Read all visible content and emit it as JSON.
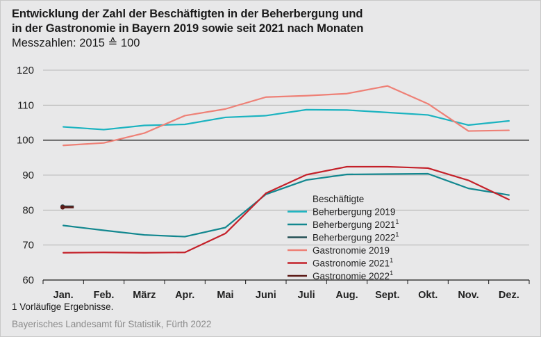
{
  "title_line1": "Entwicklung der Zahl der Beschäftigten in der Beherbergung und",
  "title_line2": "in der Gastronomie in Bayern 2019 sowie seit 2021 nach Monaten",
  "subtitle": "Messzahlen: 2015 ≙ 100",
  "footnote": "1  Vorläufige Ergebnisse.",
  "source": "Bayerisches Landesamt für Statistik, Fürth 2022",
  "chart_data": {
    "type": "line",
    "categories": [
      "Jan.",
      "Feb.",
      "März",
      "Apr.",
      "Mai",
      "Juni",
      "Juli",
      "Aug.",
      "Sept.",
      "Okt.",
      "Nov.",
      "Dez."
    ],
    "ylim": [
      60,
      120
    ],
    "yticks": [
      60,
      70,
      80,
      90,
      100,
      110,
      120
    ],
    "reference_line": 100,
    "grid": "horizontal",
    "legend_title": "Beschäftigte",
    "legend_position": "center-right",
    "series": [
      {
        "name": "Beherbergung 2019",
        "sup": "",
        "color": "#1bb3c0",
        "values": [
          103.8,
          103.0,
          104.2,
          104.5,
          106.5,
          107.0,
          108.7,
          108.6,
          107.9,
          107.2,
          104.3,
          105.5
        ]
      },
      {
        "name": "Beherbergung 2021",
        "sup": "1",
        "color": "#12878f",
        "values": [
          75.6,
          74.2,
          72.9,
          72.4,
          75.0,
          84.5,
          88.6,
          90.2,
          90.3,
          90.4,
          86.2,
          84.3
        ]
      },
      {
        "name": "Beherbergung 2022",
        "sup": "1",
        "color": "#214d52",
        "values": [
          81.0,
          null,
          null,
          null,
          null,
          null,
          null,
          null,
          null,
          null,
          null,
          null
        ]
      },
      {
        "name": "Gastronomie 2019",
        "sup": "",
        "color": "#ee8076",
        "values": [
          98.5,
          99.2,
          102.0,
          107.0,
          108.9,
          112.3,
          112.7,
          113.3,
          115.5,
          110.4,
          102.6,
          102.8
        ]
      },
      {
        "name": "Gastronomie 2021",
        "sup": "1",
        "color": "#c42029",
        "values": [
          67.8,
          67.9,
          67.8,
          67.9,
          73.3,
          84.8,
          90.1,
          92.4,
          92.4,
          92.0,
          88.5,
          83.0
        ]
      },
      {
        "name": "Gastronomie 2022",
        "sup": "1",
        "color": "#5c1b17",
        "values": [
          80.8,
          null,
          null,
          null,
          null,
          null,
          null,
          null,
          null,
          null,
          null,
          null
        ]
      }
    ]
  }
}
